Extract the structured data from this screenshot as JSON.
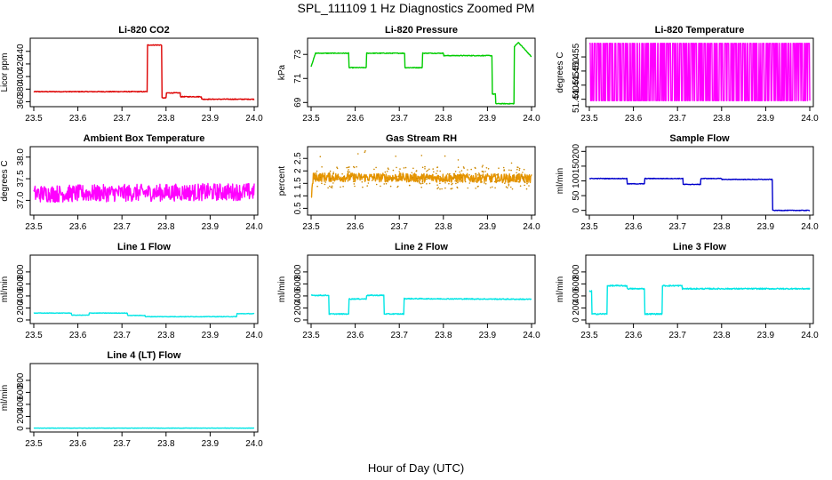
{
  "title": "SPL_111109  1 Hz Diagnostics Zoomed PM",
  "xlabel": "Hour of Day (UTC)",
  "chart_data": [
    {
      "type": "line",
      "title": "Li-820 CO2",
      "ylabel": "Licor ppm",
      "color": "#dd0000",
      "xlim": [
        23.5,
        24.0
      ],
      "ylim": [
        355,
        458
      ],
      "xticks": [
        23.5,
        23.6,
        23.7,
        23.8,
        23.9,
        24.0
      ],
      "yticks": [
        360,
        380,
        400,
        420,
        440
      ],
      "noise": 0.6,
      "series": [
        {
          "x": [
            23.5,
            23.757,
            23.757,
            23.79,
            23.79,
            23.8,
            23.8,
            23.832,
            23.832,
            23.88,
            23.88,
            24.0
          ],
          "y": [
            376,
            376,
            450,
            450,
            366,
            366,
            374,
            374,
            368,
            368,
            364,
            364
          ]
        }
      ]
    },
    {
      "type": "line",
      "title": "Li-820 Pressure",
      "ylabel": "kPa",
      "color": "#00cc00",
      "xlim": [
        23.5,
        24.0
      ],
      "ylim": [
        68.8,
        74.2
      ],
      "xticks": [
        23.5,
        23.6,
        23.7,
        23.8,
        23.9,
        24.0
      ],
      "yticks": [
        69,
        71,
        73
      ],
      "noise": 0.03,
      "series": [
        {
          "x": [
            23.5,
            23.51,
            23.585,
            23.585,
            23.625,
            23.625,
            23.712,
            23.712,
            23.752,
            23.752,
            23.8,
            23.8,
            23.91,
            23.91,
            23.918,
            23.918,
            23.96,
            23.96,
            23.97,
            24.0
          ],
          "y": [
            72.0,
            73.1,
            73.1,
            71.9,
            71.9,
            73.1,
            73.1,
            71.9,
            71.9,
            73.1,
            73.1,
            72.9,
            72.9,
            69.7,
            69.7,
            68.9,
            68.9,
            73.6,
            74.0,
            72.8
          ]
        }
      ]
    },
    {
      "type": "line",
      "title": "Li-820 Temperature",
      "ylabel": "degrees C",
      "color": "#ff00ff",
      "xlim": [
        23.5,
        24.0
      ],
      "ylim": [
        51.438,
        51.461
      ],
      "xticks": [
        23.5,
        23.6,
        23.7,
        23.8,
        23.9,
        24.0
      ],
      "yticks": [
        51.44,
        51.445,
        51.45,
        51.455
      ],
      "yticklabels": [
        "51.440",
        "51.445",
        "51.450",
        "51.455"
      ],
      "noise": 0,
      "binary": [
        51.4395,
        51.4598
      ],
      "series": []
    },
    {
      "type": "line",
      "title": "Ambient Box Temperature",
      "ylabel": "degrees C",
      "color": "#ff00ff",
      "xlim": [
        23.5,
        24.0
      ],
      "ylim": [
        36.7,
        38.2
      ],
      "xticks": [
        23.5,
        23.6,
        23.7,
        23.8,
        23.9,
        24.0
      ],
      "yticks": [
        37.0,
        37.5,
        38.0
      ],
      "yticklabels": [
        "37.0",
        "37.5",
        "38.0"
      ],
      "noise": 0.2,
      "series": [
        {
          "x": [
            23.5,
            24.0
          ],
          "y": [
            37.15,
            37.2
          ]
        }
      ]
    },
    {
      "type": "line",
      "title": "Gas Stream RH",
      "ylabel": "percent",
      "color": "#e69500",
      "xlim": [
        23.5,
        24.0
      ],
      "ylim": [
        0.3,
        2.9
      ],
      "xticks": [
        23.5,
        23.6,
        23.7,
        23.8,
        23.9,
        24.0
      ],
      "yticks": [
        0.5,
        1.0,
        1.5,
        2.0,
        2.5
      ],
      "noise": 0.18,
      "series": [
        {
          "x": [
            23.5,
            23.505,
            24.0
          ],
          "y": [
            0.9,
            1.75,
            1.7
          ]
        }
      ]
    },
    {
      "type": "line",
      "title": "Sample Flow",
      "ylabel": "ml/min",
      "color": "#0000cc",
      "xlim": [
        23.5,
        24.0
      ],
      "ylim": [
        -10,
        210
      ],
      "xticks": [
        23.5,
        23.6,
        23.7,
        23.8,
        23.9,
        24.0
      ],
      "yticks": [
        0,
        50,
        100,
        150,
        200
      ],
      "noise": 1.0,
      "series": [
        {
          "x": [
            23.5,
            23.585,
            23.585,
            23.625,
            23.625,
            23.712,
            23.712,
            23.752,
            23.752,
            23.8,
            23.8,
            23.915,
            23.915,
            24.0
          ],
          "y": [
            108,
            108,
            90,
            90,
            108,
            108,
            88,
            88,
            108,
            108,
            105,
            105,
            0,
            0
          ]
        }
      ]
    },
    {
      "type": "line",
      "title": "Line 1 Flow",
      "ylabel": "ml/min",
      "color": "#00e5e5",
      "xlim": [
        23.5,
        24.0
      ],
      "ylim": [
        -30,
        1050
      ],
      "xticks": [
        23.5,
        23.6,
        23.7,
        23.8,
        23.9,
        24.0
      ],
      "yticks": [
        0,
        200,
        400,
        600,
        800
      ],
      "noise": 4,
      "series": [
        {
          "x": [
            23.5,
            23.585,
            23.585,
            23.625,
            23.625,
            23.712,
            23.712,
            23.752,
            23.752,
            23.96,
            23.96,
            24.0
          ],
          "y": [
            115,
            115,
            80,
            80,
            115,
            115,
            75,
            75,
            55,
            55,
            105,
            105
          ]
        }
      ]
    },
    {
      "type": "line",
      "title": "Line 2 Flow",
      "ylabel": "ml/min",
      "color": "#00e5e5",
      "xlim": [
        23.5,
        24.0
      ],
      "ylim": [
        -30,
        1050
      ],
      "xticks": [
        23.5,
        23.6,
        23.7,
        23.8,
        23.9,
        24.0
      ],
      "yticks": [
        0,
        200,
        400,
        600,
        800
      ],
      "noise": 8,
      "series": [
        {
          "x": [
            23.5,
            23.54,
            23.54,
            23.585,
            23.585,
            23.625,
            23.625,
            23.665,
            23.665,
            23.71,
            23.71,
            24.0
          ],
          "y": [
            410,
            410,
            100,
            100,
            350,
            350,
            410,
            410,
            100,
            100,
            355,
            345
          ]
        }
      ]
    },
    {
      "type": "line",
      "title": "Line 3 Flow",
      "ylabel": "ml/min",
      "color": "#00e5e5",
      "xlim": [
        23.5,
        24.0
      ],
      "ylim": [
        -30,
        1050
      ],
      "xticks": [
        23.5,
        23.6,
        23.7,
        23.8,
        23.9,
        24.0
      ],
      "yticks": [
        0,
        200,
        400,
        600,
        800
      ],
      "noise": 10,
      "series": [
        {
          "x": [
            23.5,
            23.505,
            23.505,
            23.54,
            23.54,
            23.585,
            23.585,
            23.625,
            23.625,
            23.665,
            23.665,
            23.71,
            23.71,
            24.0
          ],
          "y": [
            480,
            480,
            100,
            100,
            570,
            570,
            520,
            520,
            100,
            100,
            570,
            570,
            520,
            520
          ]
        }
      ]
    },
    {
      "type": "line",
      "title": "Line 4 (LT) Flow",
      "ylabel": "ml/min",
      "color": "#00e5e5",
      "xlim": [
        23.5,
        24.0
      ],
      "ylim": [
        -30,
        1050
      ],
      "xticks": [
        23.5,
        23.6,
        23.7,
        23.8,
        23.9,
        24.0
      ],
      "yticks": [
        0,
        200,
        400,
        600,
        800
      ],
      "noise": 3,
      "series": [
        {
          "x": [
            23.5,
            24.0
          ],
          "y": [
            5,
            5
          ]
        }
      ]
    }
  ]
}
